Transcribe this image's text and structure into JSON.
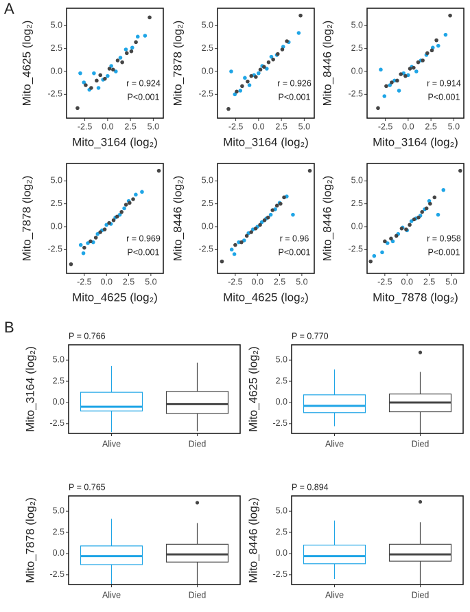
{
  "figure": {
    "panel_a": "A",
    "panel_b": "B"
  },
  "chart_data": [
    {
      "type": "scatter",
      "xlabel": "Mito_3164 (log₂)",
      "ylabel": "Mito_4625 (log₂)",
      "annotations": [
        "r = 0.924",
        "P<0.001"
      ],
      "xlim": [
        -4.5,
        6.1
      ],
      "ylim": [
        -5.1,
        6.9
      ],
      "xticks": [
        -2.5,
        {
          "value": 0,
          "label": "0.0"
        },
        2.5,
        {
          "value": 5,
          "label": "5.0"
        }
      ],
      "yticks": [
        -2.5,
        {
          "value": 0,
          "label": "0.0"
        },
        2.5,
        {
          "value": 5,
          "label": "5.0"
        }
      ],
      "series": [
        {
          "color": "#1fa5e6",
          "x": [
            -3.0,
            -2.6,
            -2.0,
            -1.5,
            -1.0,
            -0.5,
            0.0,
            0.4,
            0.9,
            1.4,
            2.0,
            2.7,
            3.3,
            4.1
          ],
          "y": [
            -0.2,
            -1.2,
            -2.0,
            -0.2,
            -1.8,
            -0.9,
            -0.5,
            0.6,
            0.0,
            1.5,
            2.4,
            2.6,
            3.8,
            3.9
          ]
        },
        {
          "color": "#454545",
          "x": [
            -3.3,
            -2.4,
            -1.8,
            -1.2,
            -0.8,
            -0.3,
            0.2,
            0.6,
            1.1,
            1.6,
            2.1,
            2.6,
            3.1,
            4.6
          ],
          "y": [
            -4.0,
            -1.5,
            -1.8,
            -1.0,
            -0.4,
            -0.8,
            0.3,
            0.2,
            1.2,
            1.0,
            2.0,
            2.2,
            3.2,
            5.9
          ]
        }
      ]
    },
    {
      "type": "scatter",
      "xlabel": "Mito_3164 (log₂)",
      "ylabel": "Mito_7878 (log₂)",
      "annotations": [
        "r = 0.926",
        "P<0.001"
      ],
      "xlim": [
        -4.5,
        6.1
      ],
      "ylim": [
        -5.1,
        6.9
      ],
      "xticks": [
        -2.5,
        {
          "value": 0,
          "label": "0.0"
        },
        2.5,
        {
          "value": 5,
          "label": "5.0"
        }
      ],
      "yticks": [
        -2.5,
        {
          "value": 0,
          "label": "0.0"
        },
        2.5,
        {
          "value": 5,
          "label": "5.0"
        }
      ],
      "series": [
        {
          "color": "#1fa5e6",
          "x": [
            -3.0,
            -2.6,
            -2.0,
            -1.5,
            -1.0,
            -0.5,
            0.0,
            0.4,
            0.9,
            1.4,
            2.0,
            2.7,
            3.3,
            4.4
          ],
          "y": [
            0.0,
            -2.5,
            -2.1,
            -0.7,
            -1.5,
            -0.4,
            -0.2,
            0.6,
            0.3,
            1.6,
            1.8,
            2.7,
            3.2,
            4.2
          ]
        },
        {
          "color": "#454545",
          "x": [
            -3.3,
            -2.4,
            -1.8,
            -1.2,
            -0.8,
            -0.3,
            0.2,
            0.6,
            1.1,
            1.6,
            2.1,
            2.6,
            3.1,
            4.6
          ],
          "y": [
            -4.1,
            -2.2,
            -1.6,
            -1.1,
            -0.5,
            -0.6,
            0.2,
            0.5,
            1.0,
            1.3,
            1.9,
            2.4,
            3.3,
            6.1
          ]
        }
      ]
    },
    {
      "type": "scatter",
      "xlabel": "Mito_3164 (log₂)",
      "ylabel": "Mito_8446 (log₂)",
      "annotations": [
        "r = 0.914",
        "P<0.001"
      ],
      "xlim": [
        -4.5,
        6.1
      ],
      "ylim": [
        -5.1,
        6.9
      ],
      "xticks": [
        -2.5,
        {
          "value": 0,
          "label": "0.0"
        },
        2.5,
        {
          "value": 5,
          "label": "5.0"
        }
      ],
      "yticks": [
        -2.5,
        {
          "value": 0,
          "label": "0.0"
        },
        2.5,
        {
          "value": 5,
          "label": "5.0"
        }
      ],
      "series": [
        {
          "color": "#1fa5e6",
          "x": [
            -3.0,
            -2.6,
            -2.0,
            -1.5,
            -1.0,
            -0.5,
            0.0,
            0.4,
            0.9,
            1.4,
            2.0,
            2.7,
            3.3,
            4.1
          ],
          "y": [
            0.2,
            -2.7,
            -1.5,
            -1.0,
            -2.1,
            -0.2,
            -0.4,
            0.5,
            0.0,
            1.2,
            1.8,
            2.6,
            2.8,
            4.0
          ]
        },
        {
          "color": "#454545",
          "x": [
            -3.3,
            -2.4,
            -1.8,
            -1.2,
            -0.8,
            -0.3,
            0.2,
            0.6,
            1.1,
            1.6,
            2.1,
            2.6,
            3.1,
            4.6
          ],
          "y": [
            -4.0,
            -1.6,
            -1.2,
            -1.0,
            -0.3,
            -0.5,
            0.3,
            0.4,
            1.0,
            1.2,
            2.0,
            2.3,
            3.4,
            6.1
          ]
        }
      ]
    },
    {
      "type": "scatter",
      "xlabel": "Mito_4625 (log₂)",
      "ylabel": "Mito_7878 (log₂)",
      "annotations": [
        "r = 0.969",
        "P<0.001"
      ],
      "xlim": [
        -4.5,
        6.4
      ],
      "ylim": [
        -5.1,
        6.9
      ],
      "xticks": [
        -2.5,
        {
          "value": 0,
          "label": "0.0"
        },
        2.5,
        {
          "value": 5,
          "label": "5.0"
        }
      ],
      "yticks": [
        -2.5,
        {
          "value": 0,
          "label": "0.0"
        },
        2.5,
        {
          "value": 5,
          "label": "5.0"
        }
      ],
      "series": [
        {
          "color": "#1fa5e6",
          "x": [
            -2.9,
            -2.6,
            -2.1,
            -1.5,
            -1.0,
            -0.5,
            0.0,
            0.5,
            1.0,
            1.5,
            2.0,
            2.5,
            3.3,
            4.0
          ],
          "y": [
            -2.0,
            -2.9,
            -1.8,
            -1.7,
            -0.8,
            -0.4,
            0.2,
            0.3,
            1.0,
            1.3,
            2.0,
            2.8,
            3.5,
            3.8
          ]
        },
        {
          "color": "#454545",
          "x": [
            -4.0,
            -2.5,
            -1.8,
            -1.2,
            -0.7,
            -0.2,
            0.3,
            0.8,
            1.2,
            1.7,
            2.2,
            2.6,
            3.0,
            5.9
          ],
          "y": [
            -4.1,
            -2.3,
            -1.6,
            -1.2,
            -0.6,
            -0.3,
            0.4,
            0.7,
            1.1,
            1.6,
            2.4,
            2.6,
            3.0,
            6.1
          ]
        }
      ]
    },
    {
      "type": "scatter",
      "xlabel": "Mito_4625 (log₂)",
      "ylabel": "Mito_8446 (log₂)",
      "annotations": [
        "r = 0.96",
        "P<0.001"
      ],
      "xlim": [
        -4.5,
        6.4
      ],
      "ylim": [
        -5.1,
        6.9
      ],
      "xticks": [
        -2.5,
        {
          "value": 0,
          "label": "0.0"
        },
        2.5,
        {
          "value": 5,
          "label": "5.0"
        }
      ],
      "yticks": [
        -2.5,
        {
          "value": 0,
          "label": "0.0"
        },
        2.5,
        {
          "value": 5,
          "label": "5.0"
        }
      ],
      "series": [
        {
          "color": "#1fa5e6",
          "x": [
            -2.9,
            -2.6,
            -2.1,
            -1.5,
            -1.0,
            -0.5,
            0.0,
            0.5,
            1.0,
            1.5,
            2.0,
            2.5,
            3.3,
            4.0
          ],
          "y": [
            -2.5,
            -3.0,
            -1.7,
            -1.5,
            -0.7,
            -0.3,
            0.0,
            0.5,
            0.9,
            1.3,
            1.9,
            2.6,
            3.3,
            1.3
          ]
        },
        {
          "color": "#454545",
          "x": [
            -4.0,
            -2.5,
            -1.8,
            -1.2,
            -0.7,
            -0.2,
            0.3,
            0.8,
            1.2,
            1.7,
            2.2,
            2.6,
            3.0,
            5.9
          ],
          "y": [
            -3.8,
            -2.0,
            -1.7,
            -1.0,
            -0.6,
            -0.2,
            0.2,
            0.7,
            1.0,
            1.8,
            2.3,
            2.5,
            3.2,
            6.1
          ]
        }
      ]
    },
    {
      "type": "scatter",
      "xlabel": "Mito_7878 (log₂)",
      "ylabel": "Mito_8446 (log₂)",
      "annotations": [
        "r = 0.958",
        "P<0.001"
      ],
      "xlim": [
        -4.5,
        6.4
      ],
      "ylim": [
        -5.1,
        6.9
      ],
      "xticks": [
        -2.5,
        {
          "value": 0,
          "label": "0.0"
        },
        2.5,
        {
          "value": 5,
          "label": "5.0"
        }
      ],
      "yticks": [
        -2.5,
        {
          "value": 0,
          "label": "0.0"
        },
        2.5,
        {
          "value": 5,
          "label": "5.0"
        }
      ],
      "series": [
        {
          "color": "#1fa5e6",
          "x": [
            -3.7,
            -2.8,
            -2.2,
            -1.6,
            -1.0,
            -0.5,
            0.0,
            0.5,
            1.0,
            1.5,
            2.0,
            2.5,
            3.5,
            4.1
          ],
          "y": [
            -3.2,
            -2.8,
            -1.8,
            -1.6,
            -0.8,
            -0.1,
            -0.4,
            0.6,
            0.9,
            1.2,
            1.9,
            2.8,
            1.3,
            4.0
          ]
        },
        {
          "color": "#454545",
          "x": [
            -4.1,
            -2.5,
            -1.8,
            -1.2,
            -0.6,
            -0.1,
            0.3,
            0.8,
            1.3,
            1.7,
            2.2,
            2.6,
            3.1,
            6.0
          ],
          "y": [
            -3.8,
            -1.6,
            -1.3,
            -1.0,
            -0.2,
            -0.3,
            0.2,
            0.8,
            1.0,
            1.6,
            2.0,
            2.5,
            3.2,
            6.1
          ]
        }
      ]
    },
    {
      "type": "box",
      "title": "P = 0.766",
      "ylabel": "Mito_3164 (log₂)",
      "categories": [
        "Alive",
        "Died"
      ],
      "colors": [
        "#1fa5e6",
        "#454545"
      ],
      "ylim": [
        -3.65,
        6.8
      ],
      "yticks": [
        -2.5,
        {
          "value": 0,
          "label": "0.0"
        },
        2.5,
        {
          "value": 5,
          "label": "5.0"
        }
      ],
      "boxes": [
        {
          "whislo": -3.5,
          "q1": -1.0,
          "med": -0.5,
          "q3": 1.2,
          "whishi": 4.3,
          "fliers": []
        },
        {
          "whislo": -3.4,
          "q1": -1.3,
          "med": -0.2,
          "q3": 1.3,
          "whishi": 4.7,
          "fliers": []
        }
      ]
    },
    {
      "type": "box",
      "title": "P = 0.770",
      "ylabel": "Mito_4625 (log₂)",
      "categories": [
        "Alive",
        "Died"
      ],
      "colors": [
        "#1fa5e6",
        "#454545"
      ],
      "ylim": [
        -3.65,
        6.8
      ],
      "yticks": [
        -2.5,
        {
          "value": 0,
          "label": "0.0"
        },
        2.5,
        {
          "value": 5,
          "label": "5.0"
        }
      ],
      "boxes": [
        {
          "whislo": -2.8,
          "q1": -1.2,
          "med": -0.4,
          "q3": 0.9,
          "whishi": 3.9,
          "fliers": []
        },
        {
          "whislo": -3.6,
          "q1": -1.1,
          "med": 0.0,
          "q3": 1.0,
          "whishi": 3.6,
          "fliers": [
            5.9
          ]
        }
      ]
    },
    {
      "type": "box",
      "title": "P = 0.765",
      "ylabel": "Mito_7878 (log₂)",
      "categories": [
        "Alive",
        "Died"
      ],
      "colors": [
        "#1fa5e6",
        "#454545"
      ],
      "ylim": [
        -3.65,
        6.8
      ],
      "yticks": [
        -2.5,
        {
          "value": 0,
          "label": "0.0"
        },
        2.5,
        {
          "value": 5,
          "label": "5.0"
        }
      ],
      "boxes": [
        {
          "whislo": -3.6,
          "q1": -1.3,
          "med": -0.3,
          "q3": 0.9,
          "whishi": 4.1,
          "fliers": []
        },
        {
          "whislo": -3.6,
          "q1": -1.0,
          "med": -0.1,
          "q3": 1.1,
          "whishi": 3.6,
          "fliers": [
            6.0
          ]
        }
      ]
    },
    {
      "type": "box",
      "title": "P = 0.894",
      "ylabel": "Mito_8446 (log₂)",
      "categories": [
        "Alive",
        "Died"
      ],
      "colors": [
        "#1fa5e6",
        "#454545"
      ],
      "ylim": [
        -3.65,
        6.8
      ],
      "yticks": [
        -2.5,
        {
          "value": 0,
          "label": "0.0"
        },
        2.5,
        {
          "value": 5,
          "label": "5.0"
        }
      ],
      "boxes": [
        {
          "whislo": -3.0,
          "q1": -1.2,
          "med": -0.3,
          "q3": 1.0,
          "whishi": 3.9,
          "fliers": []
        },
        {
          "whislo": -3.6,
          "q1": -0.9,
          "med": -0.1,
          "q3": 1.1,
          "whishi": 3.7,
          "fliers": [
            6.1
          ]
        }
      ]
    }
  ]
}
